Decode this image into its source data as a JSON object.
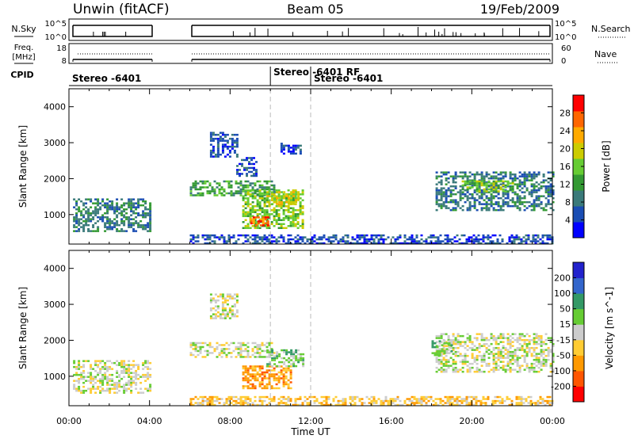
{
  "header": {
    "left": "Unwin (fitACF)",
    "center": "Beam 05",
    "right": "19/Feb/2009"
  },
  "strips": {
    "nsky_label": "N.Sky",
    "nsearch_label": "N.Search",
    "nsky_ticks": [
      "10^5",
      "10^0"
    ],
    "nsearch_ticks": [
      "10^5",
      "10^0"
    ],
    "freq_label_1": "Freq.",
    "freq_label_2": "[MHz]",
    "nave_label": "Nave",
    "freq_ticks": [
      "18",
      "8"
    ],
    "nave_ticks": [
      "60",
      "0"
    ],
    "cpid_label": "CPID"
  },
  "cpid_segments": [
    {
      "start_h": 0.0,
      "label": "Stereo -6401"
    },
    {
      "start_h": 10.0,
      "label": "Stereo -6401 RF"
    },
    {
      "start_h": 12.0,
      "label": "Stereo -6401"
    }
  ],
  "colors": {
    "power": [
      "#0000ff",
      "#1a4db3",
      "#3a7a7a",
      "#339933",
      "#66cc33",
      "#cccc00",
      "#ffaa00",
      "#ff6600",
      "#ff0000"
    ],
    "velocity": [
      "#ff0000",
      "#ff5500",
      "#ff9900",
      "#ffcc33",
      "#cccccc",
      "#66cc33",
      "#339966",
      "#3366cc",
      "#2222cc"
    ]
  },
  "chart_data": [
    {
      "type": "heatmap",
      "name": "power",
      "xlabel": "",
      "ylabel": "Slant Range [km]",
      "x_ticks": [
        "00:00",
        "04:00",
        "08:00",
        "12:00",
        "16:00",
        "20:00",
        "00:00"
      ],
      "xlim_hours": [
        0,
        24
      ],
      "ylim_km": [
        180,
        4500
      ],
      "y_ticks": [
        1000,
        2000,
        3000,
        4000
      ],
      "colorbar_label": "Power [dB]",
      "colorbar_ticks": [
        4,
        8,
        12,
        16,
        20,
        24,
        28
      ],
      "colorbar_range": [
        0,
        32
      ],
      "data_gaps_hours": [
        [
          4.0,
          6.0
        ]
      ],
      "cpid_change_lines_hours": [
        10.0,
        12.0
      ],
      "echo_regions": [
        {
          "t0": 0.2,
          "t1": 4.0,
          "r0": 550,
          "r1": 1450,
          "level": 2
        },
        {
          "t0": 6.0,
          "t1": 10.2,
          "r0": 1550,
          "r1": 1950,
          "level": 3
        },
        {
          "t0": 7.0,
          "t1": 8.4,
          "r0": 2600,
          "r1": 3300,
          "level": 1
        },
        {
          "t0": 8.3,
          "t1": 9.3,
          "r0": 2050,
          "r1": 2600,
          "level": 1
        },
        {
          "t0": 8.6,
          "t1": 11.6,
          "r0": 650,
          "r1": 1700,
          "level": 4
        },
        {
          "t0": 9.0,
          "t1": 9.9,
          "r0": 700,
          "r1": 950,
          "level": 7
        },
        {
          "t0": 9.8,
          "t1": 11.4,
          "r0": 1300,
          "r1": 1650,
          "level": 5
        },
        {
          "t0": 10.5,
          "t1": 11.5,
          "r0": 2700,
          "r1": 3000,
          "level": 1
        },
        {
          "t0": 18.2,
          "t1": 24.0,
          "r0": 1100,
          "r1": 2200,
          "level": 2
        },
        {
          "t0": 19.5,
          "t1": 22.0,
          "r0": 1650,
          "r1": 1950,
          "level": 4
        },
        {
          "t0": 6.0,
          "t1": 24.0,
          "r0": 180,
          "r1": 450,
          "level": 1
        }
      ]
    },
    {
      "type": "heatmap",
      "name": "velocity",
      "xlabel": "Time UT",
      "ylabel": "Slant Range [km]",
      "x_ticks": [
        "00:00",
        "04:00",
        "08:00",
        "12:00",
        "16:00",
        "20:00",
        "00:00"
      ],
      "xlim_hours": [
        0,
        24
      ],
      "ylim_km": [
        180,
        4500
      ],
      "y_ticks": [
        1000,
        2000,
        3000,
        4000
      ],
      "colorbar_label": "Velocity [m s^-1]",
      "colorbar_ticks": [
        200,
        100,
        50,
        15,
        -15,
        -50,
        -100,
        -200
      ],
      "data_gaps_hours": [
        [
          4.0,
          6.0
        ]
      ],
      "cpid_change_lines_hours": [
        10.0,
        12.0
      ],
      "echo_regions": [
        {
          "t0": 0.2,
          "t1": 4.0,
          "r0": 550,
          "r1": 1450,
          "level": 4
        },
        {
          "t0": 6.0,
          "t1": 10.2,
          "r0": 1550,
          "r1": 1950,
          "level": 4
        },
        {
          "t0": 7.0,
          "t1": 8.4,
          "r0": 2600,
          "r1": 3300,
          "level": 4
        },
        {
          "t0": 8.6,
          "t1": 11.0,
          "r0": 650,
          "r1": 1300,
          "level": 2
        },
        {
          "t0": 9.8,
          "t1": 11.6,
          "r0": 1300,
          "r1": 1750,
          "level": 5
        },
        {
          "t0": 18.2,
          "t1": 24.0,
          "r0": 1100,
          "r1": 2200,
          "level": 4
        },
        {
          "t0": 18.0,
          "t1": 19.0,
          "r0": 1600,
          "r1": 2000,
          "level": 5
        },
        {
          "t0": 6.0,
          "t1": 24.0,
          "r0": 180,
          "r1": 450,
          "level": 3
        }
      ]
    }
  ]
}
